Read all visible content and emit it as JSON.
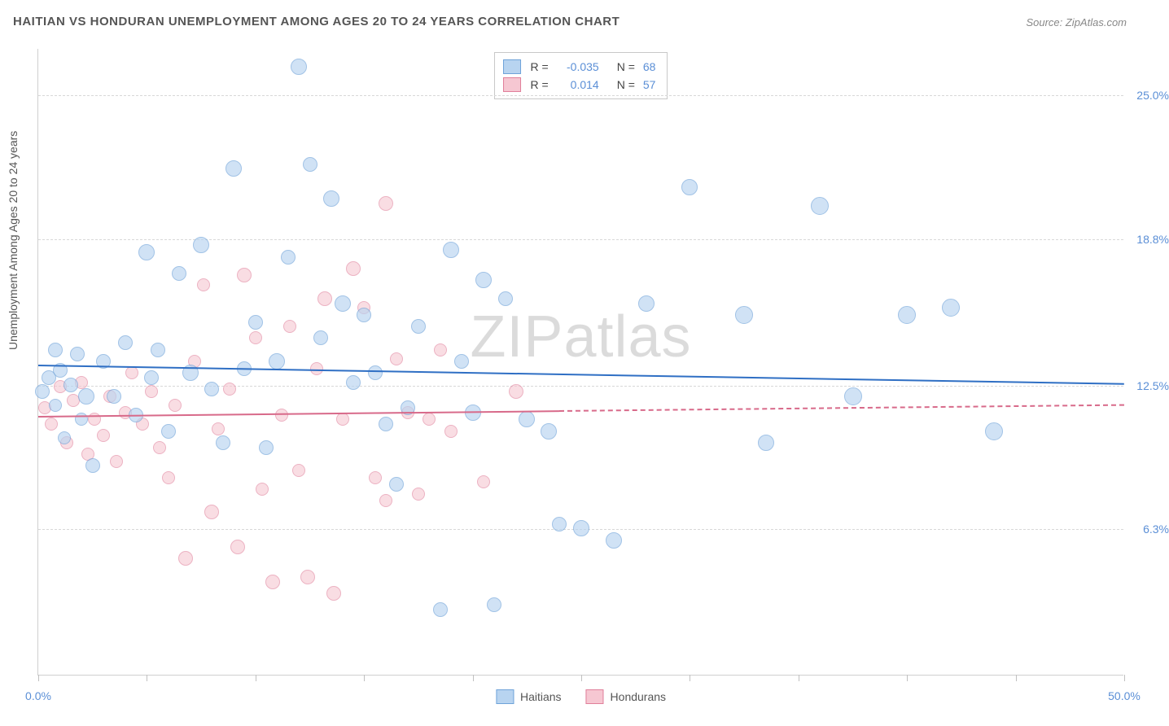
{
  "title": "HAITIAN VS HONDURAN UNEMPLOYMENT AMONG AGES 20 TO 24 YEARS CORRELATION CHART",
  "source": "Source: ZipAtlas.com",
  "watermark": "ZIPatlas",
  "ylabel": "Unemployment Among Ages 20 to 24 years",
  "chart": {
    "type": "scatter",
    "background_color": "#ffffff",
    "grid_color": "#d8d8d8",
    "border_color": "#d0d0d0",
    "tick_label_color": "#5b8fd6",
    "xlim": [
      0,
      50
    ],
    "ylim": [
      0,
      27
    ],
    "x_ticks": [
      0,
      5,
      10,
      15,
      20,
      25,
      30,
      35,
      40,
      45,
      50
    ],
    "x_tick_labels": {
      "0": "0.0%",
      "50": "50.0%"
    },
    "y_gridlines": [
      6.3,
      12.5,
      18.8,
      25.0
    ],
    "y_tick_labels": [
      "6.3%",
      "12.5%",
      "18.8%",
      "25.0%"
    ],
    "point_radius_range": [
      7,
      14
    ],
    "series": [
      {
        "name": "Haitians",
        "fill": "#b8d4f0",
        "stroke": "#6fa3d9",
        "fill_opacity": 0.65,
        "stroke_width": 1.4,
        "trend": {
          "y_at_x0": 13.4,
          "y_at_x50": 12.6,
          "color": "#2f6fc4",
          "width": 2.5,
          "dash_from_x": null
        },
        "points": [
          [
            0.2,
            12.2,
            9
          ],
          [
            0.5,
            12.8,
            9
          ],
          [
            0.8,
            11.6,
            8
          ],
          [
            1.0,
            13.1,
            9
          ],
          [
            1.2,
            10.2,
            8
          ],
          [
            1.5,
            12.5,
            9
          ],
          [
            1.8,
            13.8,
            9
          ],
          [
            2.0,
            11.0,
            8
          ],
          [
            2.2,
            12.0,
            10
          ],
          [
            2.5,
            9.0,
            9
          ],
          [
            0.8,
            14.0,
            9
          ],
          [
            3.0,
            13.5,
            9
          ],
          [
            3.5,
            12.0,
            9
          ],
          [
            4.0,
            14.3,
            9
          ],
          [
            4.5,
            11.2,
            9
          ],
          [
            5.0,
            18.2,
            10
          ],
          [
            5.2,
            12.8,
            9
          ],
          [
            5.5,
            14.0,
            9
          ],
          [
            6.0,
            10.5,
            9
          ],
          [
            6.5,
            17.3,
            9
          ],
          [
            7.0,
            13.0,
            10
          ],
          [
            7.5,
            18.5,
            10
          ],
          [
            8.0,
            12.3,
            9
          ],
          [
            8.5,
            10.0,
            9
          ],
          [
            9.0,
            21.8,
            10
          ],
          [
            9.5,
            13.2,
            9
          ],
          [
            10.0,
            15.2,
            9
          ],
          [
            10.5,
            9.8,
            9
          ],
          [
            11.0,
            13.5,
            10
          ],
          [
            11.5,
            18.0,
            9
          ],
          [
            12.0,
            26.2,
            10
          ],
          [
            12.5,
            22.0,
            9
          ],
          [
            13.0,
            14.5,
            9
          ],
          [
            13.5,
            20.5,
            10
          ],
          [
            14.0,
            16.0,
            10
          ],
          [
            14.5,
            12.6,
            9
          ],
          [
            15.0,
            15.5,
            9
          ],
          [
            15.5,
            13.0,
            9
          ],
          [
            16.0,
            10.8,
            9
          ],
          [
            16.5,
            8.2,
            9
          ],
          [
            17.0,
            11.5,
            9
          ],
          [
            17.5,
            15.0,
            9
          ],
          [
            18.5,
            2.8,
            9
          ],
          [
            19.0,
            18.3,
            10
          ],
          [
            19.5,
            13.5,
            9
          ],
          [
            20.0,
            11.3,
            10
          ],
          [
            20.5,
            17.0,
            10
          ],
          [
            21.0,
            3.0,
            9
          ],
          [
            21.5,
            16.2,
            9
          ],
          [
            22.5,
            11.0,
            10
          ],
          [
            23.5,
            10.5,
            10
          ],
          [
            24.0,
            6.5,
            9
          ],
          [
            25.0,
            6.3,
            10
          ],
          [
            26.5,
            5.8,
            10
          ],
          [
            28.0,
            16.0,
            10
          ],
          [
            30.0,
            21.0,
            10
          ],
          [
            32.5,
            15.5,
            11
          ],
          [
            33.5,
            10.0,
            10
          ],
          [
            36.0,
            20.2,
            11
          ],
          [
            37.5,
            12.0,
            11
          ],
          [
            40.0,
            15.5,
            11
          ],
          [
            42.0,
            15.8,
            11
          ],
          [
            44.0,
            10.5,
            11
          ]
        ]
      },
      {
        "name": "Hondurans",
        "fill": "#f6c7d2",
        "stroke": "#e07f9a",
        "fill_opacity": 0.6,
        "stroke_width": 1.4,
        "trend": {
          "y_at_x0": 11.2,
          "y_at_x50": 11.7,
          "color": "#d86a8a",
          "width": 2.2,
          "dash_from_x": 24
        },
        "points": [
          [
            0.3,
            11.5,
            8
          ],
          [
            0.6,
            10.8,
            8
          ],
          [
            1.0,
            12.4,
            8
          ],
          [
            1.3,
            10.0,
            8
          ],
          [
            1.6,
            11.8,
            8
          ],
          [
            2.0,
            12.6,
            8
          ],
          [
            2.3,
            9.5,
            8
          ],
          [
            2.6,
            11.0,
            8
          ],
          [
            3.0,
            10.3,
            8
          ],
          [
            3.3,
            12.0,
            8
          ],
          [
            3.6,
            9.2,
            8
          ],
          [
            4.0,
            11.3,
            8
          ],
          [
            4.3,
            13.0,
            8
          ],
          [
            4.8,
            10.8,
            8
          ],
          [
            5.2,
            12.2,
            8
          ],
          [
            5.6,
            9.8,
            8
          ],
          [
            6.0,
            8.5,
            8
          ],
          [
            6.3,
            11.6,
            8
          ],
          [
            6.8,
            5.0,
            9
          ],
          [
            7.2,
            13.5,
            8
          ],
          [
            7.6,
            16.8,
            8
          ],
          [
            8.0,
            7.0,
            9
          ],
          [
            8.3,
            10.6,
            8
          ],
          [
            8.8,
            12.3,
            8
          ],
          [
            9.2,
            5.5,
            9
          ],
          [
            9.5,
            17.2,
            9
          ],
          [
            10.0,
            14.5,
            8
          ],
          [
            10.3,
            8.0,
            8
          ],
          [
            10.8,
            4.0,
            9
          ],
          [
            11.2,
            11.2,
            8
          ],
          [
            11.6,
            15.0,
            8
          ],
          [
            12.0,
            8.8,
            8
          ],
          [
            12.4,
            4.2,
            9
          ],
          [
            12.8,
            13.2,
            8
          ],
          [
            13.2,
            16.2,
            9
          ],
          [
            13.6,
            3.5,
            9
          ],
          [
            14.0,
            11.0,
            8
          ],
          [
            14.5,
            17.5,
            9
          ],
          [
            15.0,
            15.8,
            8
          ],
          [
            15.5,
            8.5,
            8
          ],
          [
            16.0,
            7.5,
            8
          ],
          [
            16.5,
            13.6,
            8
          ],
          [
            17.0,
            11.3,
            8
          ],
          [
            17.5,
            7.8,
            8
          ],
          [
            18.0,
            11.0,
            8
          ],
          [
            18.5,
            14.0,
            8
          ],
          [
            19.0,
            10.5,
            8
          ],
          [
            20.5,
            8.3,
            8
          ],
          [
            22.0,
            12.2,
            9
          ],
          [
            16.0,
            20.3,
            9
          ]
        ]
      }
    ]
  },
  "legend_top": {
    "rows": [
      {
        "swatch_fill": "#b8d4f0",
        "swatch_stroke": "#6fa3d9",
        "r_label": "R =",
        "r_value": "-0.035",
        "n_label": "N =",
        "n_value": "68"
      },
      {
        "swatch_fill": "#f6c7d2",
        "swatch_stroke": "#e07f9a",
        "r_label": "R =",
        "r_value": "0.014",
        "n_label": "N =",
        "n_value": "57"
      }
    ]
  },
  "legend_bottom": [
    {
      "swatch_fill": "#b8d4f0",
      "swatch_stroke": "#6fa3d9",
      "label": "Haitians"
    },
    {
      "swatch_fill": "#f6c7d2",
      "swatch_stroke": "#e07f9a",
      "label": "Hondurans"
    }
  ]
}
